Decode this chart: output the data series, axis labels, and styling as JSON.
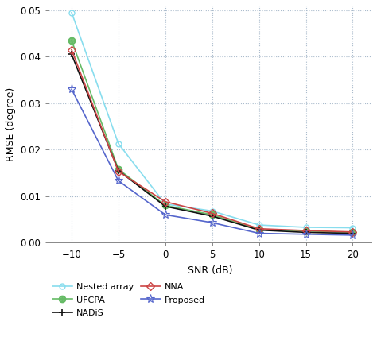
{
  "snr": [
    -10,
    -5,
    0,
    5,
    10,
    15,
    20
  ],
  "nested_array": [
    0.0495,
    0.0213,
    0.0083,
    0.0068,
    0.0038,
    0.0033,
    0.0032
  ],
  "ufcpa": [
    0.0435,
    0.0158,
    0.008,
    0.006,
    0.0028,
    0.0025,
    0.0022
  ],
  "nadis": [
    0.0405,
    0.0155,
    0.0078,
    0.0057,
    0.0027,
    0.0022,
    0.002
  ],
  "nna": [
    0.0415,
    0.0153,
    0.0088,
    0.0063,
    0.003,
    0.0026,
    0.0023
  ],
  "proposed": [
    0.033,
    0.0133,
    0.006,
    0.0043,
    0.002,
    0.0018,
    0.0016
  ],
  "colors": {
    "nested_array": "#88DDEE",
    "ufcpa": "#66BB66",
    "nadis": "#111111",
    "nna": "#CC4444",
    "proposed": "#5566CC"
  },
  "xlabel": "SNR (dB)",
  "ylabel": "RMSE (degree)",
  "xlim": [
    -12.5,
    22
  ],
  "ylim": [
    0,
    0.051
  ],
  "xticks": [
    -10,
    -5,
    0,
    5,
    10,
    15,
    20
  ],
  "yticks": [
    0,
    0.01,
    0.02,
    0.03,
    0.04,
    0.05
  ],
  "grid_color": "#AABBCC",
  "spine_color": "#888888",
  "background_color": "#FFFFFF"
}
